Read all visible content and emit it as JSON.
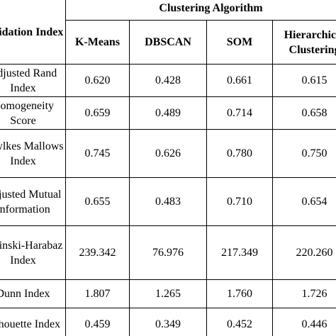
{
  "table": {
    "corner_header": "Validation Index",
    "group_header": "Clustering Algorithm",
    "columns": [
      "K-Means",
      "DBSCAN",
      "SOM",
      "Hierarchical Clustering"
    ],
    "rows": [
      {
        "label": "Adjusted Rand Index",
        "values": [
          "0.620",
          "0.428",
          "0.661",
          "0.615"
        ]
      },
      {
        "label": "Homogeneity Score",
        "values": [
          "0.659",
          "0.489",
          "0.714",
          "0.658"
        ]
      },
      {
        "label": "Fowlkes Mallows Index",
        "values": [
          "0.745",
          "0.626",
          "0.780",
          "0.750"
        ]
      },
      {
        "label": "Adjusted Mutual Information",
        "values": [
          "0.655",
          "0.483",
          "0.710",
          "0.654"
        ]
      },
      {
        "label": "Calinski-Harabaz Index",
        "values": [
          "239.342",
          "76.976",
          "217.349",
          "220.260"
        ]
      },
      {
        "label": "Dunn Index",
        "values": [
          "1.807",
          "1.265",
          "1.760",
          "1.726"
        ]
      },
      {
        "label": "Silhouette Index",
        "values": [
          "0.459",
          "0.349",
          "0.452",
          "0.446"
        ]
      }
    ]
  }
}
